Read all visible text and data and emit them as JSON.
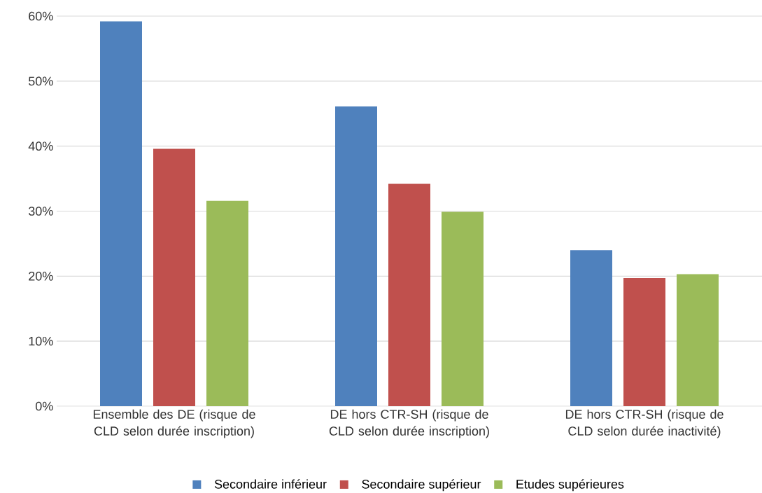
{
  "chart_data": {
    "type": "bar",
    "categories": [
      "Ensemble des DE (risque de CLD selon durée inscription)",
      "DE hors CTR-SH (risque de CLD selon durée inscription)",
      "DE hors CTR-SH (risque de CLD selon durée inactivité)"
    ],
    "series": [
      {
        "name": "Secondaire inférieur",
        "color": "#4f81bd",
        "values": [
          59.2,
          46.1,
          24.0
        ]
      },
      {
        "name": "Secondaire supérieur",
        "color": "#c0504d",
        "values": [
          39.6,
          34.2,
          19.7
        ]
      },
      {
        "name": "Etudes supérieures",
        "color": "#9bbb59",
        "values": [
          31.6,
          29.9,
          20.3
        ]
      }
    ],
    "ylim": [
      0,
      60
    ],
    "yticks": [
      {
        "value": 0,
        "label": "0%"
      },
      {
        "value": 10,
        "label": "10%"
      },
      {
        "value": 20,
        "label": "20%"
      },
      {
        "value": 30,
        "label": "30%"
      },
      {
        "value": 40,
        "label": "40%"
      },
      {
        "value": 50,
        "label": "50%"
      },
      {
        "value": 60,
        "label": "60%"
      }
    ],
    "grid": "y",
    "legend": "bottom"
  }
}
